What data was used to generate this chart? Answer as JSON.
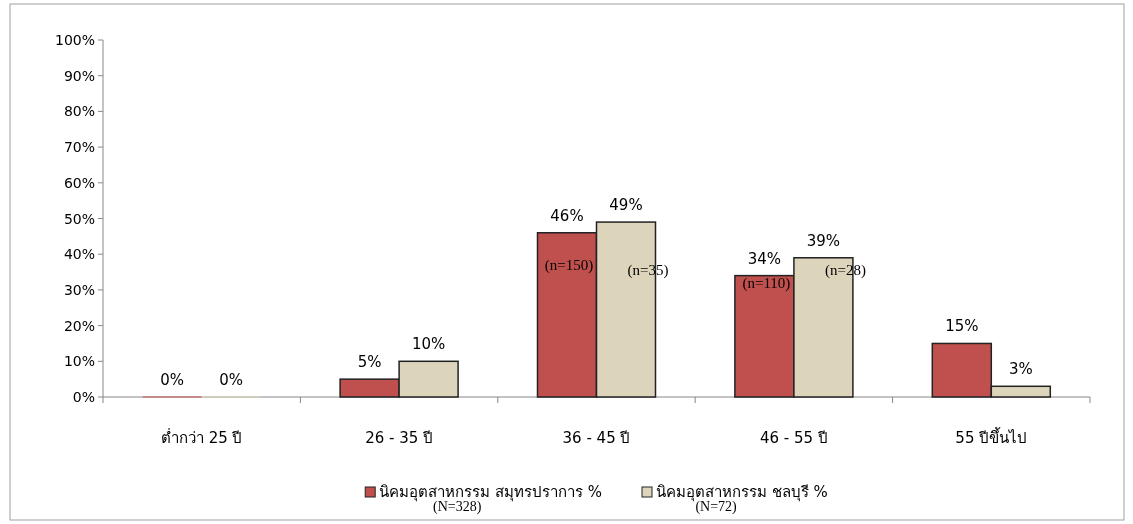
{
  "chart_data": {
    "type": "bar",
    "categories": [
      "ต่ำกว่า 25 ปี",
      "26 - 35 ปี",
      "36 - 45 ปี",
      "46 - 55 ปี",
      "55 ปีขึ้นไป"
    ],
    "series": [
      {
        "name": "นิคมอุตสาหกรรม สมุทรปราการ %",
        "color": "#c0504d",
        "values": [
          0,
          5,
          46,
          34,
          15
        ],
        "value_labels": [
          "0%",
          "5%",
          "46%",
          "34%",
          "15%"
        ]
      },
      {
        "name": "นิคมอุตสาหกรรม ชลบุรี %",
        "color": "#ddd4bc",
        "values": [
          0,
          10,
          49,
          39,
          3
        ],
        "value_labels": [
          "0%",
          "10%",
          "49%",
          "39%",
          "3%"
        ]
      }
    ],
    "ylim": [
      0,
      100
    ],
    "yticks": [
      {
        "value": 0,
        "label": "0%"
      },
      {
        "value": 10,
        "label": "10%"
      },
      {
        "value": 20,
        "label": "20%"
      },
      {
        "value": 30,
        "label": "30%"
      },
      {
        "value": 40,
        "label": "40%"
      },
      {
        "value": 50,
        "label": "50%"
      },
      {
        "value": 60,
        "label": "60%"
      },
      {
        "value": 70,
        "label": "70%"
      },
      {
        "value": 80,
        "label": "80%"
      },
      {
        "value": 90,
        "label": "90%"
      },
      {
        "value": 100,
        "label": "100%"
      }
    ],
    "legend": "bottom",
    "annotations": [
      {
        "text": "(n=150)",
        "x": "36 - 45 ปี",
        "y": 37
      },
      {
        "text": "(n=35)",
        "x": "36 - 45 ปี",
        "y": 35.5
      },
      {
        "text": "(n=110)",
        "x": "46 - 55 ปี",
        "y": 32
      },
      {
        "text": "(n=28)",
        "x": "46 - 55 ปี",
        "y": 35.5
      },
      "(N=328)",
      "(N=72)"
    ]
  }
}
